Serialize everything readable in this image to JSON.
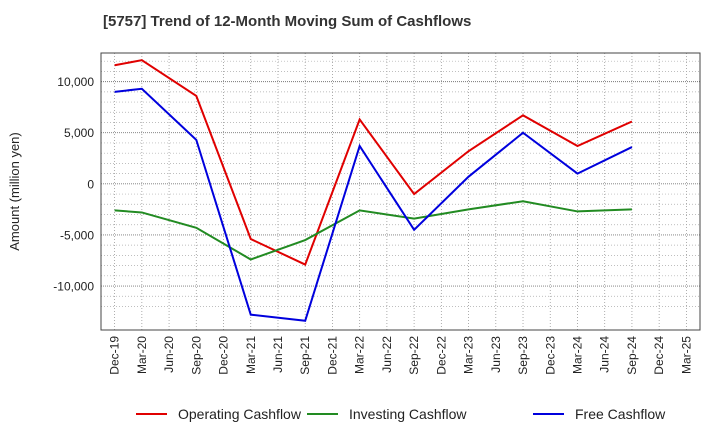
{
  "chart_data": {
    "type": "line",
    "title": "[5757]  Trend of 12-Month Moving Sum of Cashflows",
    "xlabel": "",
    "ylabel": "Amount (million yen)",
    "categories": [
      "Dec-19",
      "Mar-20",
      "Jun-20",
      "Sep-20",
      "Dec-20",
      "Mar-21",
      "Jun-21",
      "Sep-21",
      "Dec-21",
      "Mar-22",
      "Jun-22",
      "Sep-22",
      "Dec-22",
      "Mar-23",
      "Jun-23",
      "Sep-23",
      "Dec-23",
      "Mar-24",
      "Jun-24",
      "Sep-24",
      "Dec-24",
      "Mar-25"
    ],
    "ylim": [
      -14300,
      12800
    ],
    "yticks": [
      10000,
      5000,
      0,
      -5000,
      -10000
    ],
    "ytick_labels": [
      "10,000",
      "5,000",
      "0",
      "-5,000",
      "-10,000"
    ],
    "grid": true,
    "legend_position": "bottom",
    "series": [
      {
        "name": "Operating Cashflow",
        "color": "#e00000",
        "points": [
          [
            "Dec-19",
            11600
          ],
          [
            "Mar-20",
            12100
          ],
          [
            "Sep-20",
            8600
          ],
          [
            "Mar-21",
            -5400
          ],
          [
            "Sep-21",
            -7900
          ],
          [
            "Mar-22",
            6300
          ],
          [
            "Sep-22",
            -1000
          ],
          [
            "Mar-23",
            3200
          ],
          [
            "Sep-23",
            6700
          ],
          [
            "Mar-24",
            3700
          ],
          [
            "Sep-24",
            6100
          ]
        ]
      },
      {
        "name": "Investing Cashflow",
        "color": "#228b22",
        "points": [
          [
            "Dec-19",
            -2600
          ],
          [
            "Mar-20",
            -2800
          ],
          [
            "Sep-20",
            -4300
          ],
          [
            "Mar-21",
            -7400
          ],
          [
            "Sep-21",
            -5500
          ],
          [
            "Mar-22",
            -2600
          ],
          [
            "Sep-22",
            -3400
          ],
          [
            "Mar-23",
            -2500
          ],
          [
            "Sep-23",
            -1700
          ],
          [
            "Mar-24",
            -2700
          ],
          [
            "Sep-24",
            -2500
          ]
        ]
      },
      {
        "name": "Free Cashflow",
        "color": "#0000dd",
        "points": [
          [
            "Dec-19",
            9000
          ],
          [
            "Mar-20",
            9300
          ],
          [
            "Sep-20",
            4300
          ],
          [
            "Mar-21",
            -12800
          ],
          [
            "Sep-21",
            -13400
          ],
          [
            "Mar-22",
            3700
          ],
          [
            "Sep-22",
            -4500
          ],
          [
            "Mar-23",
            700
          ],
          [
            "Sep-23",
            5000
          ],
          [
            "Mar-24",
            1000
          ],
          [
            "Sep-24",
            3600
          ]
        ]
      }
    ]
  }
}
